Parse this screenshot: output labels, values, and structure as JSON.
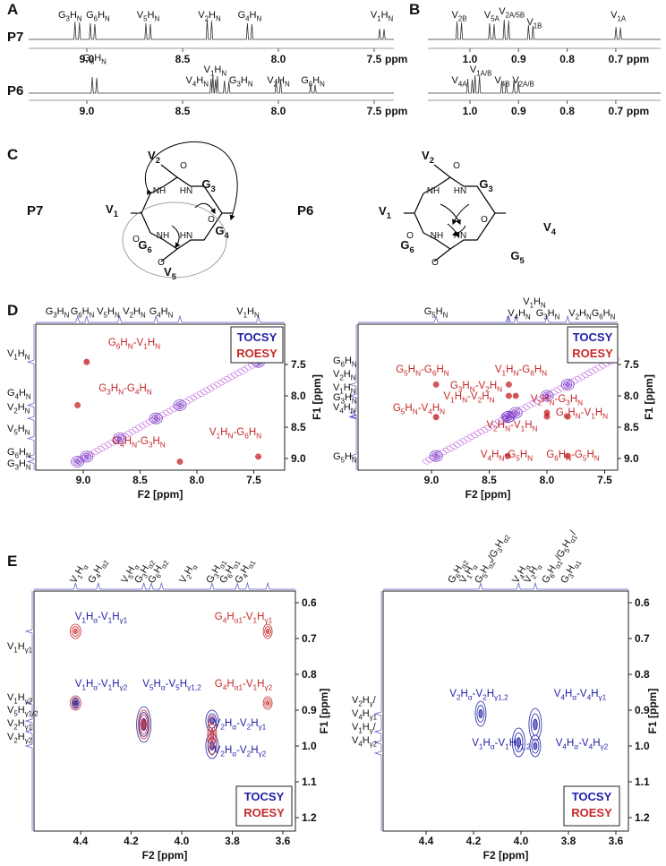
{
  "panels": {
    "A": {
      "letter": "A",
      "rows": [
        {
          "name": "P7",
          "peaks": [
            "G3HN",
            "G6HN",
            "V5HN",
            "V2HN",
            "G4HN",
            "V1HN"
          ],
          "ticks": [
            "9.0",
            "8.5",
            "8.0",
            "7.5"
          ],
          "unit": "ppm"
        },
        {
          "name": "P6",
          "peaks": [
            "G5HN",
            "V4HN",
            "V1HN",
            "G3HN",
            "V2HN",
            "G6HN"
          ],
          "ticks": [
            "9.0",
            "8.5",
            "8.0",
            "7.5"
          ],
          "unit": "ppm"
        }
      ]
    },
    "B": {
      "letter": "B",
      "rows": [
        {
          "peaks": [
            "V2B",
            "V5A",
            "V2A/5B",
            "V1B",
            "V1A"
          ],
          "ticks": [
            "1.0",
            "0.9",
            "0.8",
            "0.7"
          ],
          "unit": "ppm"
        },
        {
          "peaks": [
            "V4A",
            "V1A/B",
            "V4B",
            "V2A/B"
          ],
          "ticks": [
            "1.0",
            "0.9",
            "0.8",
            "0.7"
          ],
          "unit": "ppm"
        }
      ]
    },
    "C": {
      "letter": "C",
      "structures": [
        {
          "name": "P7",
          "residues": [
            "V1",
            "V2",
            "G3",
            "G4",
            "V5",
            "G6"
          ],
          "atoms": [
            "O",
            "NH",
            "HN",
            "O",
            "NH",
            "HN",
            "O",
            "O"
          ]
        },
        {
          "name": "P6",
          "residues": [
            "V1",
            "V2",
            "G3",
            "V4",
            "G5",
            "G6"
          ],
          "atoms": [
            "O",
            "NH",
            "HN",
            "O",
            "NH",
            "HN",
            "O",
            "O"
          ]
        }
      ]
    },
    "D": {
      "letter": "D",
      "plots": [
        {
          "top": [
            "G3HN",
            "G6HN",
            "V5HN",
            "V2HN",
            "G4HN",
            "V1HN"
          ],
          "left": [
            "V1HN",
            "G4HN",
            "V2HN",
            "V5HN",
            "G6HN",
            "G3HN"
          ],
          "cross": [
            {
              "label": "G6HN-V1HN",
              "color": "#c62828"
            },
            {
              "label": "G3HN-G4HN",
              "color": "#c62828"
            },
            {
              "label": "G4HN-G3HN",
              "color": "#c62828"
            },
            {
              "label": "V1HN-G6HN",
              "color": "#c62828"
            }
          ],
          "f2ticks": [
            "9.0",
            "8.5",
            "8.0",
            "7.5"
          ],
          "f1ticks": [
            "7.5",
            "8.0",
            "8.5",
            "9.0"
          ],
          "f2label": "F2 [ppm]",
          "f1label": "F1 [ppm]",
          "legend": [
            {
              "label": "TOCSY",
              "color": "#1f1fa8"
            },
            {
              "label": "ROESY",
              "color": "#c62828"
            }
          ]
        },
        {
          "top": [
            "G5HN",
            "V1HN",
            "V4HN",
            "G3HN",
            "V2HN",
            "G6HN"
          ],
          "left": [
            "G6HN",
            "V2HN",
            "V1HN",
            "G3HN",
            "V4HN",
            "G5HN"
          ],
          "cross": [
            {
              "label": "G5HN-G6HN",
              "color": "#c62828"
            },
            {
              "label": "V1HN-G6HN",
              "color": "#c62828"
            },
            {
              "label": "G3HN-V2HN",
              "color": "#c62828"
            },
            {
              "label": "V1HN-V2HN",
              "color": "#c62828"
            },
            {
              "label": "G5HN-V4HN",
              "color": "#c62828"
            },
            {
              "label": "V2HN-G3HN",
              "color": "#c62828"
            },
            {
              "label": "G6HN-V1HN",
              "color": "#c62828"
            },
            {
              "label": "V2HN-V1HN",
              "color": "#c62828"
            },
            {
              "label": "V4HN-G5HN",
              "color": "#c62828"
            },
            {
              "label": "G6HN-G5HN",
              "color": "#c62828"
            }
          ],
          "f2ticks": [
            "9.0",
            "8.5",
            "8.0",
            "7.5"
          ],
          "f1ticks": [
            "7.5",
            "8.0",
            "8.5",
            "9.0"
          ],
          "f2label": "F2 [ppm]",
          "f1label": "F1 [ppm]",
          "legend": [
            {
              "label": "TOCSY",
              "color": "#1f1fa8"
            },
            {
              "label": "ROESY",
              "color": "#c62828"
            }
          ]
        }
      ]
    },
    "E": {
      "letter": "E",
      "plots": [
        {
          "top": [
            "V1Hα",
            "G4Hα2",
            "V5Hα",
            "G3Hα2",
            "G6Hα2",
            "V2Hα",
            "G3Hα1",
            "G6Hα1",
            "G4Hα1"
          ],
          "left": [
            "V1Hγ1",
            "V1Hγ2",
            "V5Hγ1/2",
            "V2Hγ1",
            "V2Hγ2"
          ],
          "cross": [
            {
              "label": "V1Hα-V1Hγ1",
              "color": "#1f1fa8"
            },
            {
              "label": "V1Hα-V1Hγ2",
              "color": "#1f1fa8"
            },
            {
              "label": "V5Hα-V5Hγ1,2",
              "color": "#1f1fa8"
            },
            {
              "label": "V2Hα-V2Hγ1",
              "color": "#1f1fa8"
            },
            {
              "label": "V2Hα-V2Hγ2",
              "color": "#1f1fa8"
            },
            {
              "label": "G4Hα1-V1Hγ1",
              "color": "#c62828"
            },
            {
              "label": "G4Hα1-V1Hγ2",
              "color": "#c62828"
            }
          ],
          "f2ticks": [
            "4.4",
            "4.2",
            "4.0",
            "3.8",
            "3.6"
          ],
          "f1ticks": [
            "0.6",
            "0.7",
            "0.8",
            "0.9",
            "1.0",
            "1.1",
            "1.2"
          ],
          "f2label": "F2 [ppm]",
          "f1label": "F1 [ppm]",
          "legend": [
            {
              "label": "TOCSY",
              "color": "#1f1fa8"
            },
            {
              "label": "ROESY",
              "color": "#c62828"
            }
          ]
        },
        {
          "top": [
            "G6Hα2",
            "V1Hα",
            "G5Hα2/G3Hα2",
            "V4Hα",
            "V2Hα",
            "G6Hα1/G5Hα1/",
            "G3Hα1"
          ],
          "left": [
            "V2Hγ/",
            "V4Hγ1",
            "V1Hγ/",
            "V4Hγ2"
          ],
          "cross": [
            {
              "label": "V2Hα-V2Hγ1,2",
              "color": "#1f1fa8"
            },
            {
              "label": "V4Hα-V4Hγ1",
              "color": "#1f1fa8"
            },
            {
              "label": "V1Hα-V1Hγ1,2",
              "color": "#1f1fa8"
            },
            {
              "label": "V4Hα-V4Hγ2",
              "color": "#1f1fa8"
            }
          ],
          "f2ticks": [
            "4.4",
            "4.2",
            "4.0",
            "3.8",
            "3.6"
          ],
          "f1ticks": [
            "0.6",
            "0.7",
            "0.8",
            "0.9",
            "1.0",
            "1.1",
            "1.2"
          ],
          "f2label": "F2 [ppm]",
          "f1label": "F1 [ppm]",
          "legend": [
            {
              "label": "TOCSY",
              "color": "#1f1fa8"
            },
            {
              "label": "ROESY",
              "color": "#c62828"
            }
          ]
        }
      ]
    }
  }
}
